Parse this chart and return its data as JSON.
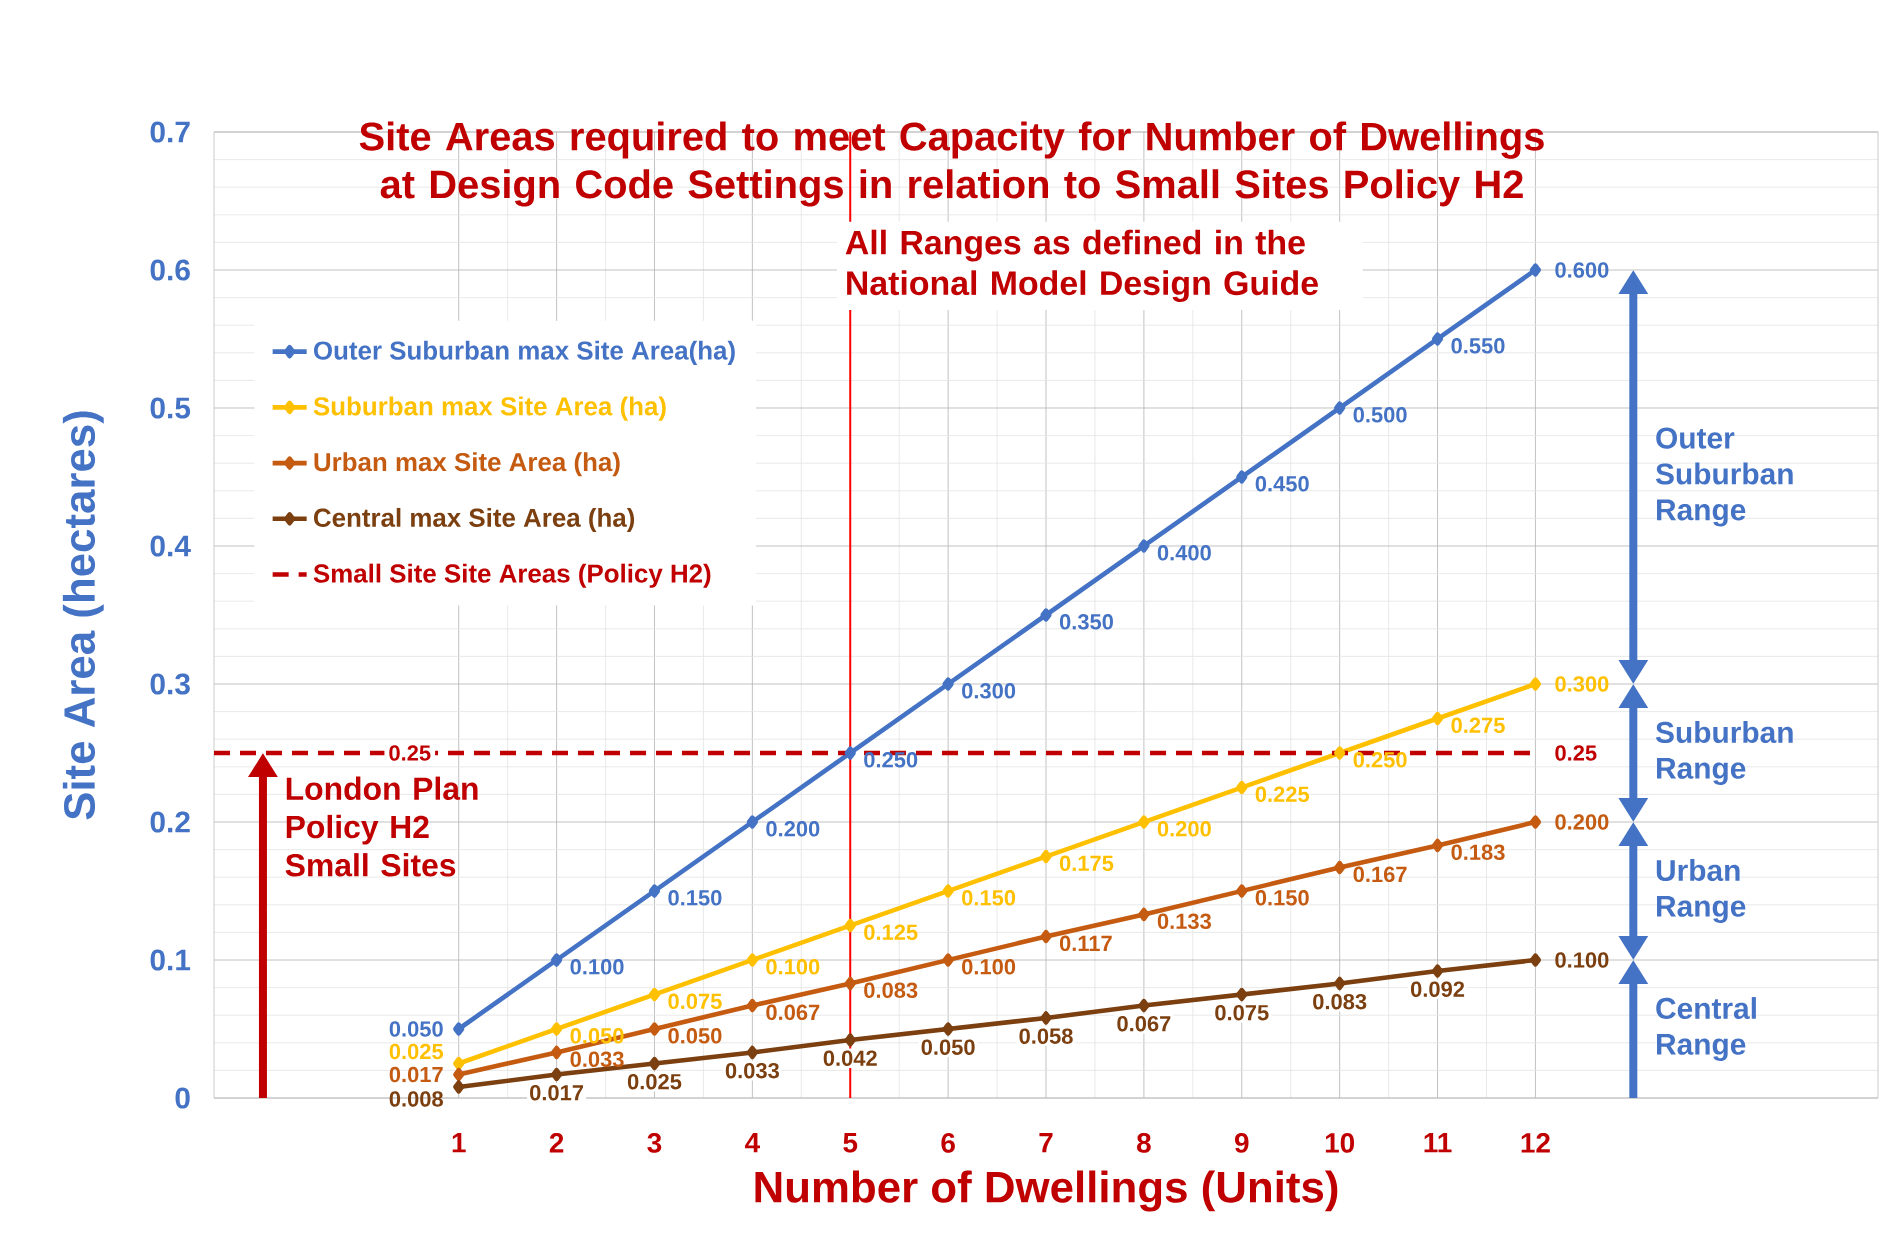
{
  "chart_data": {
    "type": "line",
    "title": "Site Areas required to meet Capacity for Number of Dwellings at Design Code Settings in relation to Small Sites Policy H2",
    "xlabel": "Number of Dwellings (Units)",
    "ylabel": "Site Area  (hectares)",
    "x": [
      1,
      2,
      3,
      4,
      5,
      6,
      7,
      8,
      9,
      10,
      11,
      12
    ],
    "xlim": [
      -1.5,
      15.5
    ],
    "xticks": [
      1,
      2,
      3,
      4,
      5,
      6,
      7,
      8,
      9,
      10,
      11,
      12
    ],
    "ylim": [
      0,
      0.7
    ],
    "yticks": [
      0,
      0.1,
      0.2,
      0.3,
      0.4,
      0.5,
      0.6,
      0.7
    ],
    "grid": true,
    "legend": "top left",
    "marker": "diamond",
    "series": [
      {
        "name": "Outer Suburban max Site Area(ha)",
        "color": "#4472c4",
        "values": [
          0.05,
          0.1,
          0.15,
          0.2,
          0.25,
          0.3,
          0.35,
          0.4,
          0.45,
          0.5,
          0.55,
          0.6
        ],
        "value_labels": [
          "0.050",
          "0.100",
          "0.150",
          "0.200",
          "0.250",
          "0.300",
          "0.350",
          "0.400",
          "0.450",
          "0.500",
          "0.550",
          "0.600"
        ]
      },
      {
        "name": "Suburban max Site Area (ha)",
        "color": "#ffc000",
        "values": [
          0.025,
          0.05,
          0.075,
          0.1,
          0.125,
          0.15,
          0.175,
          0.2,
          0.225,
          0.25,
          0.275,
          0.3
        ],
        "value_labels": [
          "0.025",
          "0.050",
          "0.075",
          "0.100",
          "0.125",
          "0.150",
          "0.175",
          "0.200",
          "0.225",
          "0.250",
          "0.275",
          "0.300"
        ]
      },
      {
        "name": "Urban max Site Area (ha)",
        "color": "#c55a11",
        "values": [
          0.017,
          0.033,
          0.05,
          0.067,
          0.083,
          0.1,
          0.117,
          0.133,
          0.15,
          0.167,
          0.183,
          0.2
        ],
        "value_labels": [
          "0.017",
          "0.033",
          "0.050",
          "0.067",
          "0.083",
          "0.100",
          "0.117",
          "0.133",
          "0.150",
          "0.167",
          "0.183",
          "0.200"
        ]
      },
      {
        "name": "Central max Site Area (ha)",
        "color": "#7b3f10",
        "values": [
          0.008,
          0.017,
          0.025,
          0.033,
          0.042,
          0.05,
          0.058,
          0.067,
          0.075,
          0.083,
          0.092,
          0.1
        ],
        "value_labels": [
          "0.008",
          "0.017",
          "0.025",
          "0.033",
          "0.042",
          "0.050",
          "0.058",
          "0.067",
          "0.075",
          "0.083",
          "0.092",
          "0.100"
        ]
      },
      {
        "name": "Small Site Site Areas (Policy H2)",
        "color": "#c00000",
        "x": [
          -1.5,
          0.5,
          12
        ],
        "values": [
          0.25,
          0.25,
          0.25
        ],
        "value_labels": [
          null,
          "0.25",
          "0.25"
        ],
        "marker": "none",
        "line_style": "dashed"
      }
    ],
    "ref_lines": [
      {
        "axis": "x",
        "value": 5,
        "color": "#ff0000"
      }
    ],
    "annotations": [
      "All Ranges as defined in the National Model Design Guide",
      "London Plan Policy H2 Small Sites",
      "Outer Suburban Range",
      "Suburban Range",
      "Urban Range",
      "Central Range"
    ]
  }
}
